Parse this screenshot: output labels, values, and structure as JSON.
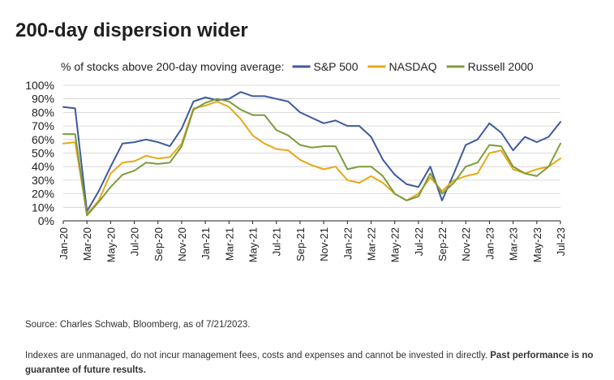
{
  "title": "200-day dispersion wider",
  "source": "Source: Charles Schwab, Bloomberg, as of 7/21/2023.",
  "disclaimer": {
    "text": "Indexes are unmanaged, do not incur management fees, costs and expenses and cannot be invested in directly. ",
    "bold": "Past performance is no guarantee of future results."
  },
  "chart_data": {
    "type": "line",
    "legend_title": "% of stocks above 200-day moving average:",
    "legend_position": "top",
    "x_ticks": [
      "Jan-20",
      "Mar-20",
      "May-20",
      "Jul-20",
      "Sep-20",
      "Nov-20",
      "Jan-21",
      "Mar-21",
      "May-21",
      "Jul-21",
      "Sep-21",
      "Nov-21",
      "Jan-22",
      "Mar-22",
      "May-22",
      "Jul-22",
      "Sep-22",
      "Nov-22",
      "Jan-23",
      "Mar-23",
      "May-23",
      "Jul-23"
    ],
    "y_ticks": [
      "0%",
      "10%",
      "20%",
      "30%",
      "40%",
      "50%",
      "60%",
      "70%",
      "80%",
      "90%",
      "100%"
    ],
    "ylim": [
      0,
      100
    ],
    "grid": "horizontal",
    "x": [
      "2020-01",
      "2020-02",
      "2020-03",
      "2020-04",
      "2020-05",
      "2020-06",
      "2020-07",
      "2020-08",
      "2020-09",
      "2020-10",
      "2020-11",
      "2020-12",
      "2021-01",
      "2021-02",
      "2021-03",
      "2021-04",
      "2021-05",
      "2021-06",
      "2021-07",
      "2021-08",
      "2021-09",
      "2021-10",
      "2021-11",
      "2021-12",
      "2022-01",
      "2022-02",
      "2022-03",
      "2022-04",
      "2022-05",
      "2022-06",
      "2022-07",
      "2022-08",
      "2022-09",
      "2022-10",
      "2022-11",
      "2022-12",
      "2023-01",
      "2023-02",
      "2023-03",
      "2023-04",
      "2023-05",
      "2023-06",
      "2023-07"
    ],
    "series": [
      {
        "name": "S&P 500",
        "color": "#3d5a9e",
        "values": [
          84,
          83,
          7,
          22,
          40,
          57,
          58,
          60,
          58,
          55,
          68,
          88,
          91,
          89,
          90,
          95,
          92,
          92,
          90,
          88,
          80,
          76,
          72,
          74,
          70,
          70,
          62,
          45,
          34,
          27,
          25,
          40,
          15,
          35,
          56,
          60,
          72,
          65,
          52,
          62,
          58,
          62,
          73
        ]
      },
      {
        "name": "NASDAQ",
        "color": "#e8a817",
        "values": [
          57,
          58,
          5,
          15,
          35,
          43,
          44,
          48,
          46,
          47,
          57,
          83,
          85,
          88,
          84,
          75,
          63,
          57,
          53,
          52,
          45,
          41,
          38,
          40,
          30,
          28,
          33,
          28,
          20,
          15,
          20,
          32,
          22,
          30,
          33,
          35,
          50,
          52,
          38,
          35,
          38,
          40,
          46
        ]
      },
      {
        "name": "Russell 2000",
        "color": "#7c9c3c",
        "values": [
          64,
          64,
          4,
          14,
          25,
          34,
          37,
          43,
          42,
          43,
          55,
          82,
          87,
          90,
          88,
          82,
          78,
          78,
          67,
          63,
          56,
          54,
          55,
          55,
          38,
          40,
          40,
          33,
          20,
          15,
          18,
          35,
          20,
          28,
          40,
          43,
          56,
          55,
          40,
          35,
          33,
          40,
          57
        ]
      }
    ]
  }
}
